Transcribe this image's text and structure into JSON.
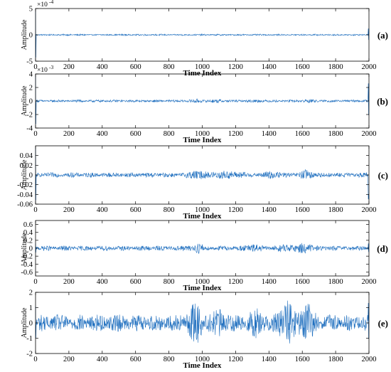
{
  "figure": {
    "line_color": "#1f6fbf",
    "panels": [
      {
        "label": "(a)",
        "chart_data": {
          "type": "line",
          "xlabel": "Time Index",
          "ylabel": "Amplitude",
          "xlim": [
            0,
            2000
          ],
          "ylim": [
            -5,
            5
          ],
          "y_multiplier": "× 10^-4",
          "multiplier_text": "×10",
          "multiplier_exp": "-4",
          "xticks": [
            0,
            200,
            400,
            600,
            800,
            1000,
            1200,
            1400,
            1600,
            1800,
            2000
          ],
          "yticks": [
            -5,
            0,
            5
          ],
          "ytick_labels": [
            "-5",
            "0",
            "5"
          ],
          "signal": {
            "length": 2000,
            "noise_amplitude": 0.12,
            "start_spike": 4.8,
            "end_spike": 1.2,
            "envelope_peaks": []
          }
        }
      },
      {
        "label": "(b)",
        "chart_data": {
          "type": "line",
          "xlabel": "Time Index",
          "ylabel": "Amplitude",
          "xlim": [
            0,
            2000
          ],
          "ylim": [
            -4,
            4
          ],
          "y_multiplier": "× 10^-3",
          "multiplier_text": "×10",
          "multiplier_exp": "-3",
          "xticks": [
            0,
            200,
            400,
            600,
            800,
            1000,
            1200,
            1400,
            1600,
            1800,
            2000
          ],
          "yticks": [
            -4,
            -2,
            0,
            2,
            4
          ],
          "ytick_labels": [
            "-4",
            "-2",
            "0",
            "2",
            "4"
          ],
          "signal": {
            "length": 2000,
            "noise_amplitude": 0.15,
            "start_spike": 3.8,
            "end_spike": 2.6,
            "envelope_peaks": [
              [
                970,
                0.12
              ],
              [
                1100,
                0.1
              ],
              [
                1330,
                0.08
              ],
              [
                1620,
                0.1
              ]
            ]
          }
        }
      },
      {
        "label": "(c)",
        "chart_data": {
          "type": "line",
          "xlabel": "Time Index",
          "ylabel": "Amplitude",
          "xlim": [
            0,
            2000
          ],
          "ylim": [
            -0.06,
            0.06
          ],
          "xticks": [
            0,
            200,
            400,
            600,
            800,
            1000,
            1200,
            1400,
            1600,
            1800,
            2000
          ],
          "yticks": [
            -0.06,
            -0.04,
            -0.02,
            0,
            0.02,
            0.04
          ],
          "ytick_labels": [
            "-0.06",
            "-0.04",
            "-0.02",
            "0",
            "0.02",
            "0.04"
          ],
          "signal": {
            "length": 2000,
            "noise_amplitude": 0.004,
            "start_spike": 0.058,
            "end_spike": -0.05,
            "envelope_peaks": [
              [
                970,
                0.006
              ],
              [
                1100,
                0.005
              ],
              [
                1200,
                0.004
              ],
              [
                1420,
                0.004
              ],
              [
                1620,
                0.005
              ]
            ]
          }
        }
      },
      {
        "label": "(d)",
        "chart_data": {
          "type": "line",
          "xlabel": "Time Index",
          "ylabel": "Amplitude",
          "xlim": [
            0,
            2000
          ],
          "ylim": [
            -0.7,
            0.7
          ],
          "xticks": [
            0,
            200,
            400,
            600,
            800,
            1000,
            1200,
            1400,
            1600,
            1800,
            2000
          ],
          "yticks": [
            -0.6,
            -0.4,
            -0.2,
            0,
            0.2,
            0.4,
            0.6
          ],
          "ytick_labels": [
            "-0.6",
            "-0.4",
            "-0.2",
            "0",
            "0.2",
            "0.4",
            "0.6"
          ],
          "signal": {
            "length": 2000,
            "noise_amplitude": 0.05,
            "start_spike": 0.12,
            "end_spike": 0.12,
            "envelope_peaks": [
              [
                970,
                0.06
              ],
              [
                1300,
                0.05
              ],
              [
                1500,
                0.06
              ],
              [
                1620,
                0.09
              ]
            ]
          }
        }
      },
      {
        "label": "(e)",
        "chart_data": {
          "type": "line",
          "xlabel": "Time Index",
          "ylabel": "Amplitude",
          "xlim": [
            0,
            2000
          ],
          "ylim": [
            -2,
            2
          ],
          "xticks": [
            0,
            200,
            400,
            600,
            800,
            1000,
            1200,
            1400,
            1600,
            1800,
            2000
          ],
          "yticks": [
            -2,
            -1,
            0,
            1,
            2
          ],
          "ytick_labels": [
            "-2",
            "-1",
            "0",
            "1",
            "2"
          ],
          "signal": {
            "length": 2000,
            "noise_amplitude": 0.45,
            "start_spike": 1.1,
            "end_spike": 1.3,
            "envelope_peaks": [
              [
                960,
                0.7
              ],
              [
                1100,
                0.4
              ],
              [
                1500,
                0.9
              ],
              [
                1620,
                0.8
              ],
              [
                1330,
                0.4
              ]
            ]
          }
        }
      }
    ]
  }
}
